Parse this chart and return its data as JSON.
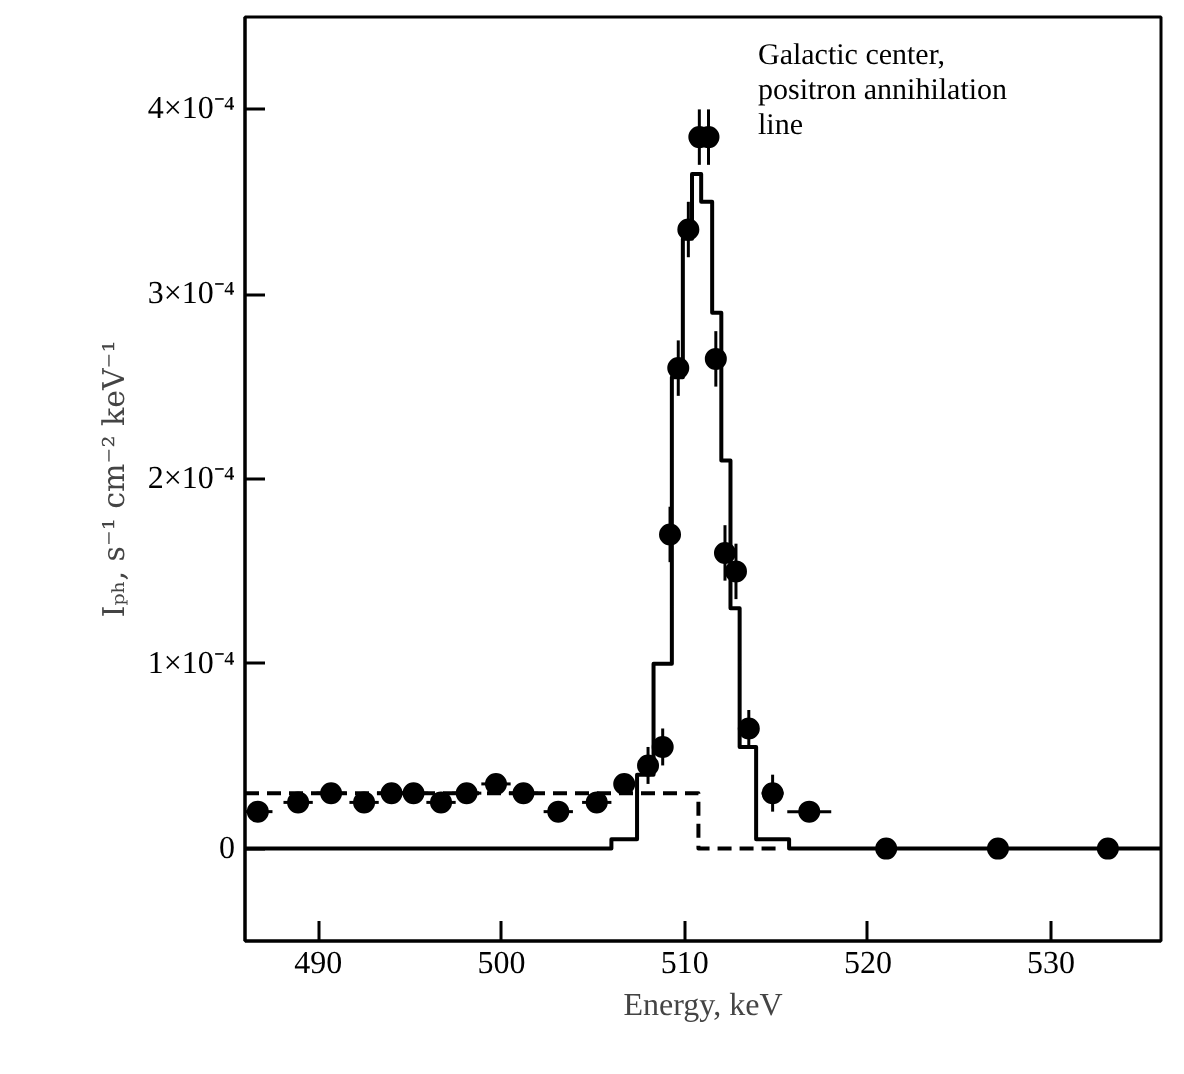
{
  "chart_data": {
    "type": "step",
    "xlabel": "Energy, keV",
    "ylabel": "Iₚₕ, s⁻¹ cm⁻² keV⁻¹",
    "xlim": [
      486,
      536
    ],
    "ylim": [
      -5e-05,
      0.00045
    ],
    "xticks": [
      490,
      500,
      510,
      520,
      530
    ],
    "yticks": [
      {
        "value": 0,
        "label": "0"
      },
      {
        "value": 0.0001,
        "label": "1×10⁻⁴"
      },
      {
        "value": 0.0002,
        "label": "2×10⁻⁴"
      },
      {
        "value": 0.0003,
        "label": "3×10⁻⁴"
      },
      {
        "value": 0.0004,
        "label": "4×10⁻⁴"
      }
    ],
    "annotations": [
      "Galactic center,\npositron annihilation\nline"
    ],
    "series": [
      {
        "color": "#000000",
        "line_style": "solid",
        "x": [
          486,
          506.0,
          507.4,
          508.3,
          509.3,
          509.9,
          510.4,
          510.9,
          511.5,
          512.0,
          512.5,
          513.0,
          513.9,
          515.7,
          536
        ],
        "values": [
          0,
          5e-06,
          4e-05,
          0.0001,
          0.000255,
          0.00033,
          0.000365,
          0.00035,
          0.00029,
          0.00021,
          0.00013,
          5.5e-05,
          5e-06,
          0,
          0
        ]
      },
      {
        "type": "step",
        "color": "#000000",
        "line_style": "dashed",
        "x": [
          486,
          510.75,
          515.2
        ],
        "values": [
          3e-05,
          0,
          0
        ]
      },
      {
        "type": "scatter",
        "color": "#000000",
        "marker": "circle",
        "x": [
          486.7,
          488.9,
          490.7,
          492.5,
          494.0,
          495.2,
          496.7,
          498.1,
          499.7,
          501.2,
          503.1,
          505.2,
          506.7,
          508.0,
          508.8,
          509.2,
          509.65,
          510.2,
          510.8,
          511.3,
          511.7,
          512.2,
          512.8,
          513.5,
          514.8,
          516.8,
          521.0,
          527.1,
          533.1
        ],
        "values": [
          2e-05,
          2.5e-05,
          3e-05,
          2.5e-05,
          3e-05,
          3e-05,
          2.5e-05,
          3e-05,
          3.5e-05,
          3e-05,
          2e-05,
          2.5e-05,
          3.5e-05,
          4.5e-05,
          5.5e-05,
          0.00017,
          0.00026,
          0.000335,
          0.000385,
          0.000385,
          0.000265,
          0.00016,
          0.00015,
          6.5e-05,
          3e-05,
          2e-05,
          0,
          0,
          0
        ],
        "errors": [
          5e-06,
          5e-06,
          5e-06,
          5e-06,
          5e-06,
          5e-06,
          5e-06,
          5e-06,
          5e-06,
          5e-06,
          5e-06,
          5e-06,
          5e-06,
          1e-05,
          1e-05,
          1.5e-05,
          1.5e-05,
          1.5e-05,
          1.5e-05,
          1.5e-05,
          1.5e-05,
          1.5e-05,
          1.5e-05,
          1e-05,
          1e-05,
          null,
          null,
          null,
          null
        ],
        "xerrors": [
          0.8,
          0.8,
          0.8,
          0.8,
          0.8,
          0.8,
          0.8,
          0.8,
          0.8,
          0.8,
          0.8,
          0.8,
          0.5,
          0.3,
          null,
          null,
          null,
          null,
          null,
          null,
          null,
          null,
          null,
          null,
          0.6,
          1.2,
          3,
          null,
          null
        ]
      }
    ]
  }
}
